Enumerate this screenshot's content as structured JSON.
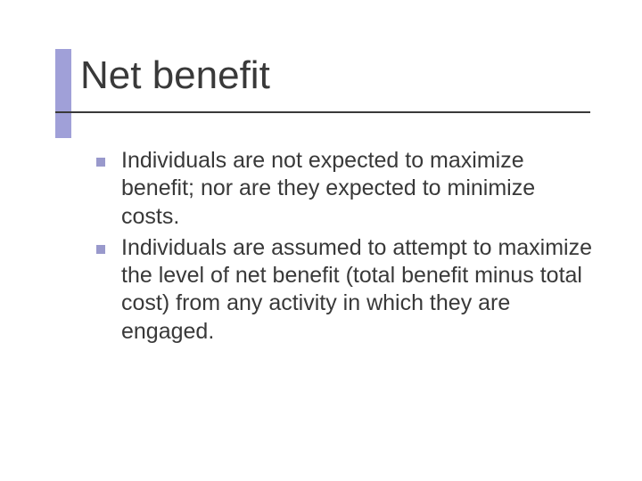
{
  "slide": {
    "title": "Net benefit",
    "title_color": "#393939",
    "title_fontsize": 44,
    "accent_color": "#a0a0d8",
    "underline_color": "#393939",
    "bullet_color": "#9999cc",
    "body_color": "#393939",
    "body_fontsize": 25,
    "background_color": "#ffffff",
    "bullets": [
      {
        "text": "Individuals are not expected to maximize benefit; nor are they expected to minimize costs."
      },
      {
        "text": "Individuals are assumed to attempt to maximize the level of net benefit (total benefit minus total cost) from any activity in which they are engaged."
      }
    ]
  }
}
